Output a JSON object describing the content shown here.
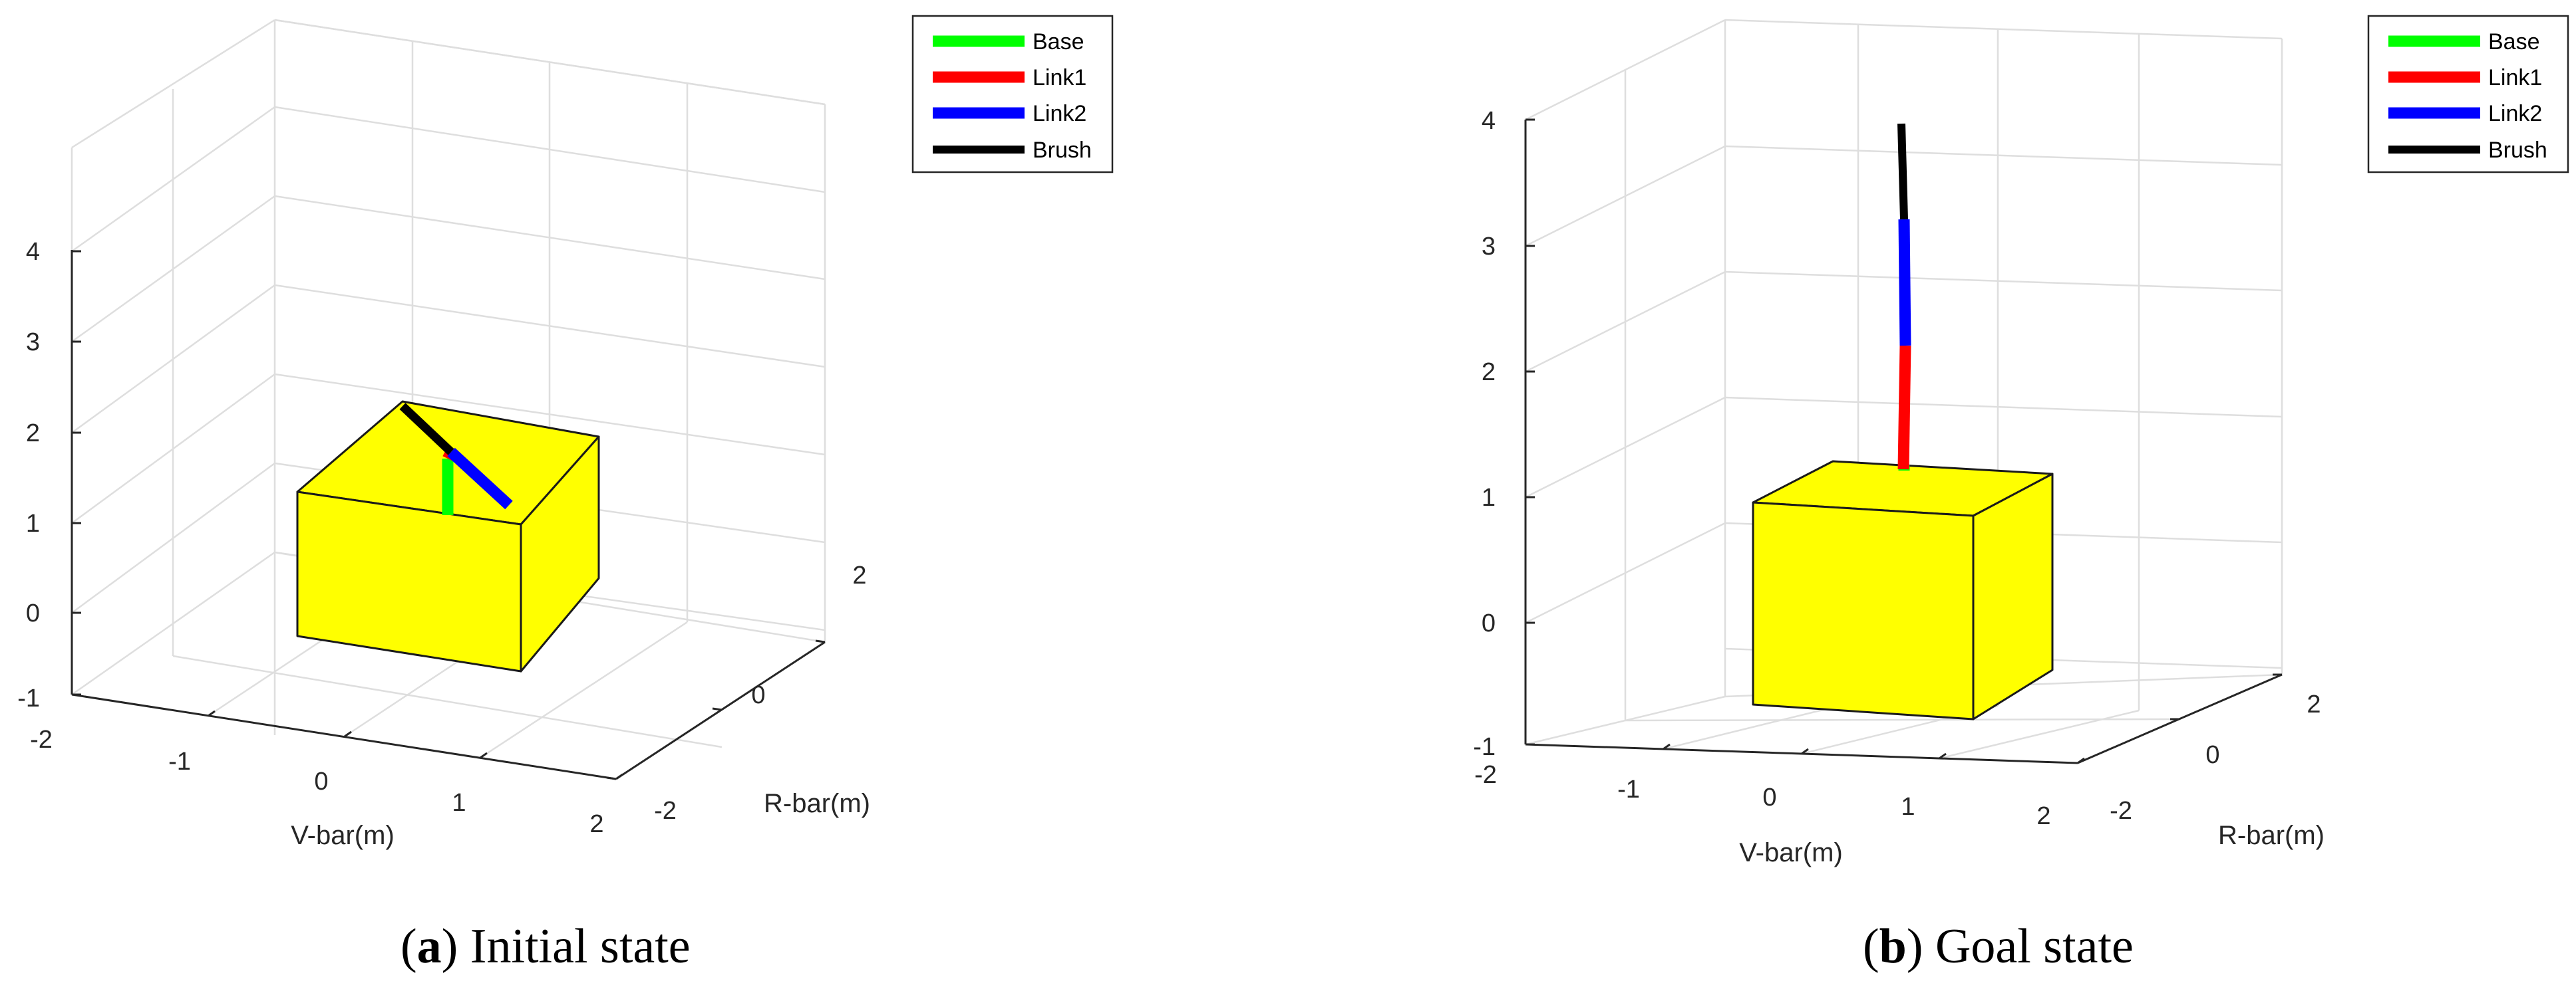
{
  "colors": {
    "base": "#00ff00",
    "link1": "#ff0000",
    "link2": "#0000ff",
    "brush": "#000000",
    "box": "#ffff00",
    "grid": "#dedede",
    "axis": "#262626"
  },
  "panels": [
    {
      "id": "a",
      "caption_letter": "a",
      "caption_text": ") Initial state",
      "xlabel": "V-bar(m)",
      "ylabel": "R-bar(m)",
      "xticks": [
        "-2",
        "-1",
        "0",
        "1",
        "2"
      ],
      "yticks": [
        "-2",
        "0",
        "2"
      ],
      "zticks": [
        "-1",
        "0",
        "1",
        "2",
        "3",
        "4"
      ],
      "legend": [
        "Base",
        "Link1",
        "Link2",
        "Brush"
      ]
    },
    {
      "id": "b",
      "caption_letter": "b",
      "caption_text": ") Goal state",
      "xlabel": "V-bar(m)",
      "ylabel": "R-bar(m)",
      "xticks": [
        "-2",
        "-1",
        "0",
        "1",
        "2"
      ],
      "yticks": [
        "-2",
        "0",
        "2"
      ],
      "zticks": [
        "-1",
        "0",
        "1",
        "2",
        "3",
        "4"
      ],
      "legend": [
        "Base",
        "Link1",
        "Link2",
        "Brush"
      ]
    }
  ]
}
